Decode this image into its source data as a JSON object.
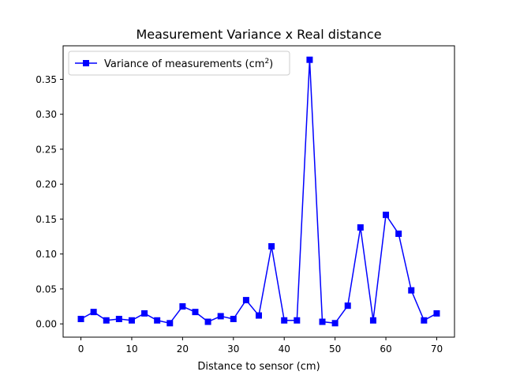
{
  "chart_data": {
    "type": "line",
    "title": "Measurement Variance x Real distance",
    "xlabel": "Distance to sensor (cm)",
    "ylabel": "",
    "xlim": [
      -3.5,
      73.5
    ],
    "ylim": [
      -0.019,
      0.398
    ],
    "xticks": [
      0,
      10,
      20,
      30,
      40,
      50,
      60,
      70
    ],
    "yticks": [
      0.0,
      0.05,
      0.1,
      0.15,
      0.2,
      0.25,
      0.3,
      0.35
    ],
    "xtick_labels": [
      "0",
      "10",
      "20",
      "30",
      "40",
      "50",
      "60",
      "70"
    ],
    "ytick_labels": [
      "0.00",
      "0.05",
      "0.10",
      "0.15",
      "0.20",
      "0.25",
      "0.30",
      "0.35"
    ],
    "legend": {
      "placement": "top-left",
      "text": "Variance of measurements (cm",
      "superscript": "2",
      "close": ")"
    },
    "grid": false,
    "color": "#0000ff",
    "marker": "square",
    "series": [
      {
        "name": "Variance of measurements (cm²)",
        "x": [
          0,
          2.5,
          5,
          7.5,
          10,
          12.5,
          15,
          17.5,
          20,
          22.5,
          25,
          27.5,
          30,
          32.5,
          35,
          37.5,
          40,
          42.5,
          45,
          47.5,
          50,
          52.5,
          55,
          57.5,
          60,
          62.5,
          65,
          67.5,
          70
        ],
        "y": [
          0.007,
          0.017,
          0.005,
          0.007,
          0.005,
          0.015,
          0.005,
          0.001,
          0.025,
          0.017,
          0.003,
          0.011,
          0.007,
          0.034,
          0.012,
          0.111,
          0.005,
          0.005,
          0.378,
          0.003,
          0.001,
          0.026,
          0.138,
          0.005,
          0.156,
          0.129,
          0.048,
          0.005,
          0.015
        ]
      }
    ]
  }
}
